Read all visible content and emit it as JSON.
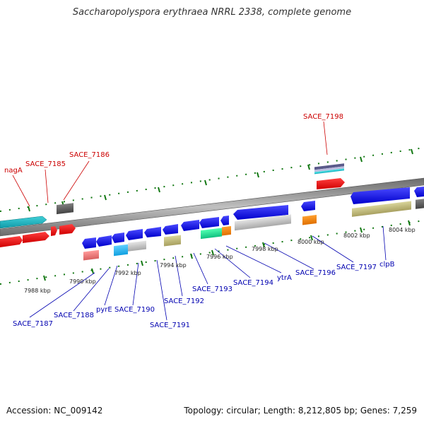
{
  "title": "Saccharopolyspora erythraea NRRL 2338, complete genome",
  "footer": {
    "accession": "Accession: NC_009142",
    "summary": "Topology: circular; Length: 8,212,805 bp; Genes: 7,259"
  },
  "colors": {
    "backbone": "#8a8a8a",
    "forward_label": "#cc0000",
    "reverse_label": "#0000b0",
    "tick_mark": "#117711"
  },
  "scale_labels": [
    "7988 kbp",
    "7990 kbp",
    "7992 kbp",
    "7994 kbp",
    "7996 kbp",
    "7998 kbp",
    "8000 kbp",
    "8002 kbp",
    "8004 kbp"
  ],
  "forward_gene_labels": [
    "nagA",
    "SACE_7185",
    "SACE_7186",
    "SACE_7198"
  ],
  "reverse_gene_labels": [
    "SACE_7187",
    "SACE_7188",
    "pyrE",
    "SACE_7190",
    "SACE_7191",
    "SACE_7192",
    "SACE_7193",
    "SACE_7194",
    "ytrA",
    "SACE_7196",
    "SACE_7197",
    "clpB"
  ]
}
